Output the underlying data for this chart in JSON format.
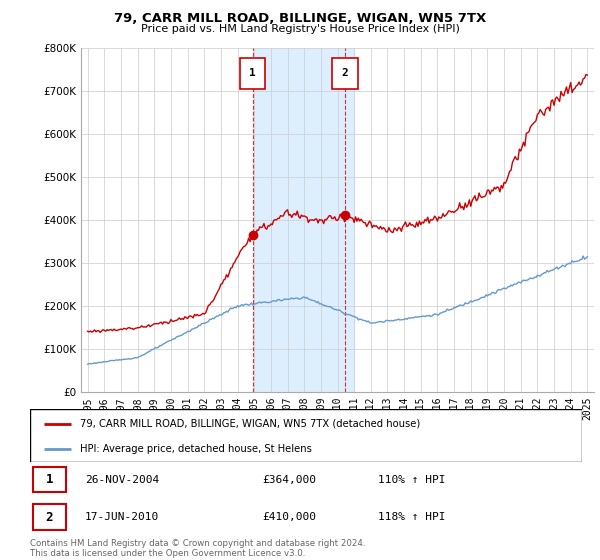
{
  "title": "79, CARR MILL ROAD, BILLINGE, WIGAN, WN5 7TX",
  "subtitle": "Price paid vs. HM Land Registry's House Price Index (HPI)",
  "ylim": [
    0,
    800000
  ],
  "yticks": [
    0,
    100000,
    200000,
    300000,
    400000,
    500000,
    600000,
    700000,
    800000
  ],
  "ytick_labels": [
    "£0",
    "£100K",
    "£200K",
    "£300K",
    "£400K",
    "£500K",
    "£600K",
    "£700K",
    "£800K"
  ],
  "sale1": {
    "date_num": 2004.9,
    "price": 364000,
    "label": "1",
    "display": "26-NOV-2004",
    "price_str": "£364,000",
    "hpi_str": "110% ↑ HPI"
  },
  "sale2": {
    "date_num": 2010.46,
    "price": 410000,
    "label": "2",
    "display": "17-JUN-2010",
    "price_str": "£410,000",
    "hpi_str": "118% ↑ HPI"
  },
  "shaded_region": [
    2005.0,
    2011.0
  ],
  "legend_line1": "79, CARR MILL ROAD, BILLINGE, WIGAN, WN5 7TX (detached house)",
  "legend_line2": "HPI: Average price, detached house, St Helens",
  "footer": "Contains HM Land Registry data © Crown copyright and database right 2024.\nThis data is licensed under the Open Government Licence v3.0.",
  "property_color": "#cc0000",
  "hpi_color": "#6699cc",
  "shade_color": "#ddeeff",
  "background_color": "#ffffff",
  "grid_color": "#cccccc"
}
